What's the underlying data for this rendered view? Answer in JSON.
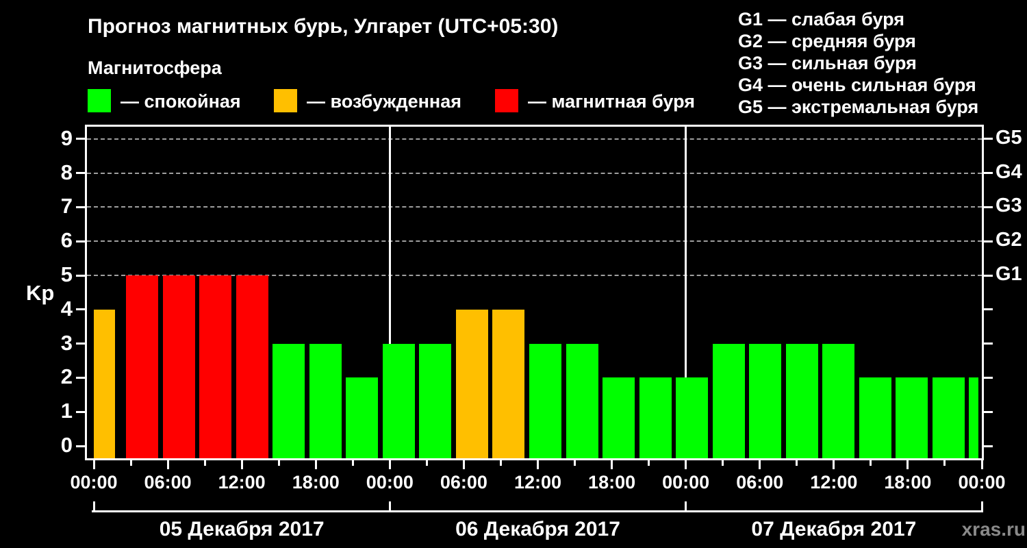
{
  "title": "Прогноз магнитных бурь, Улгарет (UTC+05:30)",
  "watermark": "xras.ru",
  "magnetosphere_legend": {
    "heading": "Магнитосфера",
    "items": [
      {
        "name": "quiet",
        "label": "— спокойная",
        "color": "#00ff00"
      },
      {
        "name": "excited",
        "label": "— возбужденная",
        "color": "#ffbf00"
      },
      {
        "name": "storm",
        "label": "— магнитная буря",
        "color": "#ff0000"
      }
    ]
  },
  "g_scale_legend": [
    "G1 — слабая буря",
    "G2 — средняя буря",
    "G3 — сильная буря",
    "G4 — очень сильная буря",
    "G5 — экстремальная буря"
  ],
  "chart_data": {
    "type": "bar",
    "title": "Прогноз магнитных бурь, Улгарет (UTC+05:30)",
    "ylabel": "Kp",
    "ylim": [
      0,
      9
    ],
    "y_ticks": [
      0,
      1,
      2,
      3,
      4,
      5,
      6,
      7,
      8,
      9
    ],
    "right_axis_ticks": [
      {
        "value": 5,
        "label": "G1"
      },
      {
        "value": 6,
        "label": "G2"
      },
      {
        "value": 7,
        "label": "G3"
      },
      {
        "value": 8,
        "label": "G4"
      },
      {
        "value": 9,
        "label": "G5"
      }
    ],
    "dashed_gridlines_at": [
      5,
      6,
      7,
      8,
      9
    ],
    "bar_interval_hours": 3,
    "x_tick_labels_every_6h": [
      "00:00",
      "06:00",
      "12:00",
      "18:00",
      "00:00",
      "06:00",
      "12:00",
      "18:00",
      "00:00",
      "06:00",
      "12:00",
      "18:00",
      "00:00"
    ],
    "days": [
      {
        "date": "05 Декабря 2017",
        "kp": [
          4,
          5,
          5,
          5,
          5,
          3,
          3,
          2
        ]
      },
      {
        "date": "06 Декабря 2017",
        "kp": [
          3,
          3,
          4,
          4,
          3,
          3,
          2,
          2
        ]
      },
      {
        "date": "07 Декабря 2017",
        "kp": [
          2,
          3,
          3,
          3,
          3,
          2,
          2,
          2
        ]
      }
    ],
    "next_interval_partial_bar_kp": 2,
    "color_rule": {
      "kp_0_3": "#00ff00",
      "kp_4": "#ffbf00",
      "kp_5_9": "#ff0000"
    },
    "legend_position": "top",
    "grid": "dashed horizontal lines at G-storm levels only"
  }
}
